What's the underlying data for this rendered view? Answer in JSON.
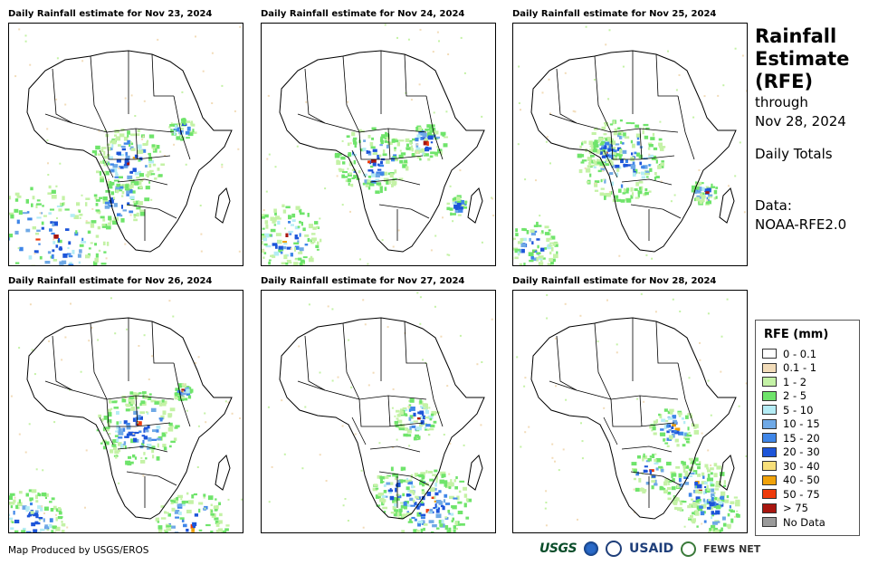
{
  "panels": [
    {
      "title": "Daily Rainfall estimate for Nov 23, 2024"
    },
    {
      "title": "Daily Rainfall estimate for Nov 24, 2024"
    },
    {
      "title": "Daily Rainfall estimate for Nov 25, 2024"
    },
    {
      "title": "Daily Rainfall estimate for Nov 26, 2024"
    },
    {
      "title": "Daily Rainfall estimate for Nov 27, 2024"
    },
    {
      "title": "Daily Rainfall estimate for Nov 28, 2024"
    }
  ],
  "side": {
    "title_line1": "Rainfall",
    "title_line2": "Estimate",
    "title_line3": "(RFE)",
    "through": "through",
    "through_date": "Nov 28, 2024",
    "totals": "Daily Totals",
    "data_label": "Data:",
    "data_source": "NOAA-RFE2.0"
  },
  "legend": {
    "title": "RFE (mm)",
    "items": [
      {
        "label": "0 - 0.1",
        "color": "#ffffff"
      },
      {
        "label": "0.1 - 1",
        "color": "#f2dcb9"
      },
      {
        "label": "1 - 2",
        "color": "#c4f2a6"
      },
      {
        "label": "2 - 5",
        "color": "#6fe46b"
      },
      {
        "label": "5 - 10",
        "color": "#b4ecf5"
      },
      {
        "label": "10 - 15",
        "color": "#6fa9e6"
      },
      {
        "label": "15 - 20",
        "color": "#3f86e8"
      },
      {
        "label": "20 - 30",
        "color": "#1d55d9"
      },
      {
        "label": "30 - 40",
        "color": "#f7df7a"
      },
      {
        "label": "40 - 50",
        "color": "#f0a20a"
      },
      {
        "label": "50 - 75",
        "color": "#ee3b0c"
      },
      {
        "label": "> 75",
        "color": "#a8160f"
      },
      {
        "label": "No Data",
        "color": "#9b9b9b"
      }
    ]
  },
  "credit": "Map Produced by USGS/EROS",
  "logos": {
    "usgs": "USGS",
    "usaid": "USAID",
    "fews": "FEWS NET"
  }
}
